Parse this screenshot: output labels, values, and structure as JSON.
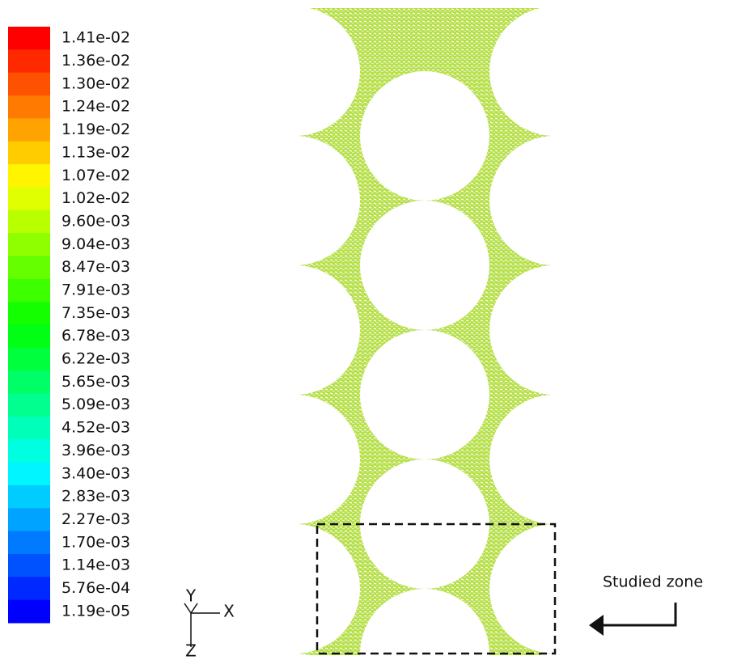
{
  "colorbar": {
    "labels": [
      "1.41e-02",
      "1.36e-02",
      "1.30e-02",
      "1.24e-02",
      "1.19e-02",
      "1.13e-02",
      "1.07e-02",
      "1.02e-02",
      "9.60e-03",
      "9.04e-03",
      "8.47e-03",
      "7.91e-03",
      "7.35e-03",
      "6.78e-03",
      "6.22e-03",
      "5.65e-03",
      "5.09e-03",
      "4.52e-03",
      "3.96e-03",
      "3.40e-03",
      "2.83e-03",
      "2.27e-03",
      "1.70e-03",
      "1.14e-03",
      "5.76e-04",
      "1.19e-05"
    ]
  },
  "axes": {
    "y": "Y",
    "x": "X",
    "z": "Z"
  },
  "annotation": "Studied zone"
}
